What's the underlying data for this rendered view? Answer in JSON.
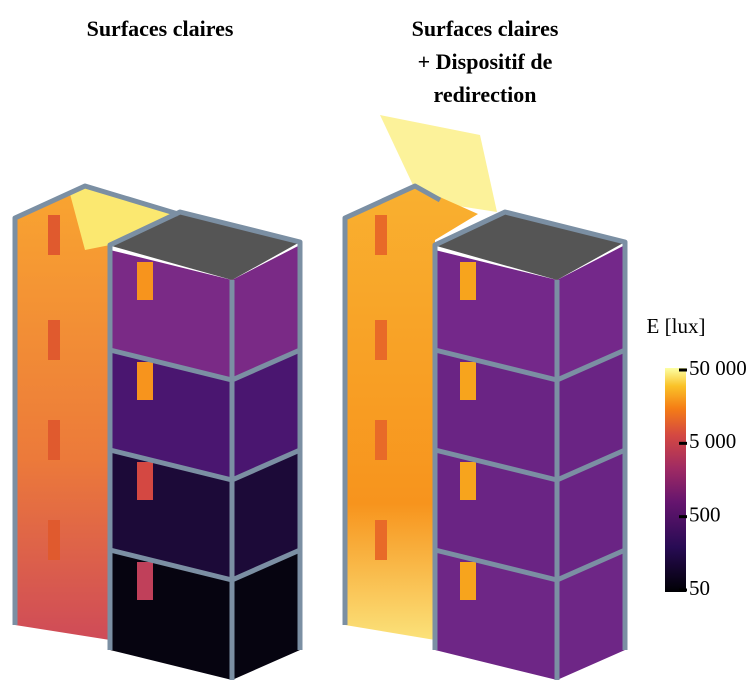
{
  "panels": [
    {
      "title": [
        "Surfaces claires"
      ]
    },
    {
      "title": [
        "Surfaces claires",
        "+ Dispositif de",
        "redirection"
      ]
    }
  ],
  "colorbar": {
    "label": "E [lux]",
    "scale": "log",
    "lim": [
      50,
      50000
    ],
    "ticks": [
      {
        "value": 50000,
        "label": "50 000"
      },
      {
        "value": 5000,
        "label": "5 000"
      },
      {
        "value": 500,
        "label": "500"
      },
      {
        "value": 50,
        "label": "50"
      }
    ]
  }
}
